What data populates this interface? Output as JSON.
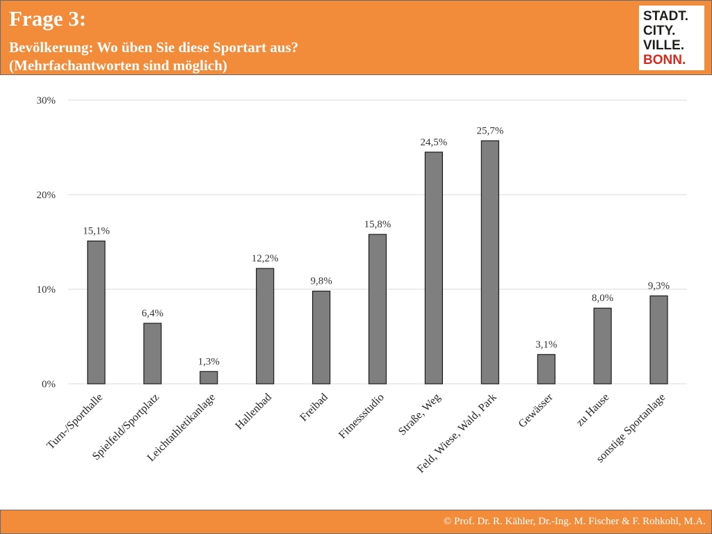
{
  "header": {
    "title": "Frage 3:",
    "subtitle_line1": "Bevölkerung: Wo üben Sie diese Sportart aus?",
    "subtitle_line2": "(Mehrfachantworten sind möglich)",
    "logo_lines": [
      "STADT.",
      "CITY.",
      "VILLE.",
      "BONN."
    ]
  },
  "footer": {
    "text": "© Prof. Dr. R. Kähler, Dr.-Ing. M. Fischer & F. Rohkohl, M.A."
  },
  "colors": {
    "accent": "#f28c3a",
    "bar": "#7f7f7f",
    "grid": "#d9d9d9",
    "logo_red": "#d52b1e"
  },
  "chart_data": {
    "type": "bar",
    "categories": [
      "Turn-/Sporthalle",
      "Spielfeld/Sportplatz",
      "Leichtathletikanlage",
      "Hallenbad",
      "Freibad",
      "Fitnessstudio",
      "Straße, Weg",
      "Feld, Wiese, Wald, Park",
      "Gewässer",
      "zu Hause",
      "sonstige Sportanlage"
    ],
    "values": [
      15.1,
      6.4,
      1.3,
      12.2,
      9.8,
      15.8,
      24.5,
      25.7,
      3.1,
      8.0,
      9.3
    ],
    "value_labels": [
      "15,1%",
      "6,4%",
      "1,3%",
      "12,2%",
      "9,8%",
      "15,8%",
      "24,5%",
      "25,7%",
      "3,1%",
      "8,0%",
      "9,3%"
    ],
    "yticks": [
      0,
      10,
      20,
      30
    ],
    "ytick_labels": [
      "0%",
      "10%",
      "20%",
      "30%"
    ],
    "ylim": [
      0,
      30
    ],
    "grid": true,
    "legend": "none"
  }
}
